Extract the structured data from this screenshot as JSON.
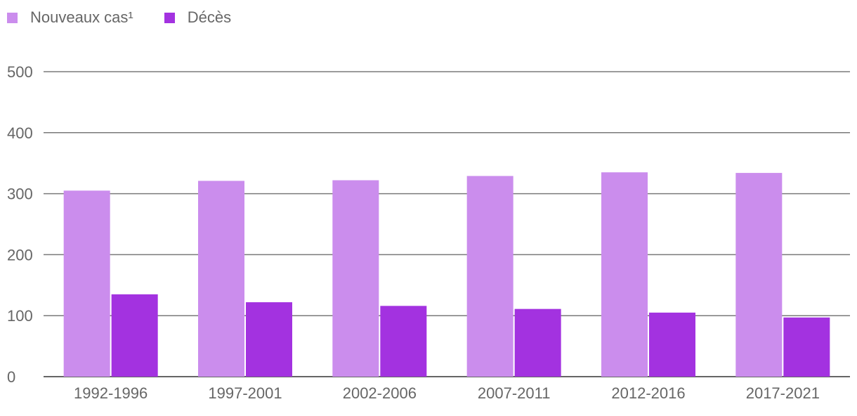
{
  "chart_data": {
    "type": "bar",
    "categories": [
      "1992-1996",
      "1997-2001",
      "2002-2006",
      "2007-2011",
      "2012-2016",
      "2017-2021"
    ],
    "series": [
      {
        "name": "Nouveaux cas¹",
        "color": "#cb8ded",
        "values": [
          305,
          321,
          322,
          329,
          335,
          334
        ]
      },
      {
        "name": "Décès",
        "color": "#a332e0",
        "values": [
          135,
          122,
          116,
          111,
          105,
          97
        ]
      }
    ],
    "ylim": [
      0,
      500
    ],
    "yticks": [
      0,
      100,
      200,
      300,
      400,
      500
    ],
    "grid": true,
    "legend_position": "top-left",
    "title": "",
    "xlabel": "",
    "ylabel": ""
  }
}
